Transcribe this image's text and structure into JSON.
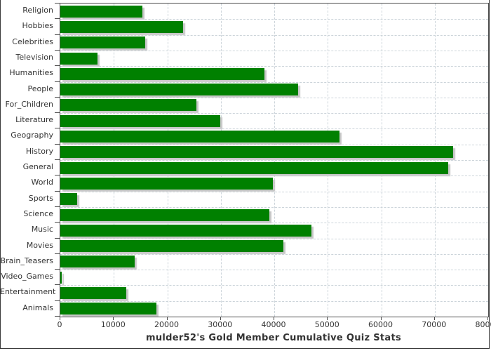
{
  "chart_data": {
    "type": "bar",
    "orientation": "horizontal",
    "title": "mulder52's Gold Member Cumulative Quiz Stats",
    "categories": [
      "Religion",
      "Hobbies",
      "Celebrities",
      "Television",
      "Humanities",
      "People",
      "For_Children",
      "Literature",
      "Geography",
      "History",
      "General",
      "World",
      "Sports",
      "Science",
      "Music",
      "Movies",
      "Brain_Teasers",
      "Video_Games",
      "Entertainment",
      "Animals"
    ],
    "values": [
      15300,
      22900,
      15900,
      7000,
      38200,
      44500,
      25400,
      29900,
      52200,
      73400,
      72500,
      39700,
      3100,
      39100,
      47000,
      41700,
      13900,
      300,
      12300,
      18000
    ],
    "xlabel": "",
    "ylabel": "",
    "xlim": [
      0,
      80000
    ],
    "x_ticks": [
      0,
      10000,
      20000,
      30000,
      40000,
      50000,
      60000,
      70000,
      80000
    ],
    "grid": true,
    "legend": false,
    "bar_color": "#008000",
    "bar_shadow_color": "#c7c7c7",
    "grid_color": "#ccd4da",
    "axis_color": "#4d4d4d",
    "text_color": "#333333"
  }
}
